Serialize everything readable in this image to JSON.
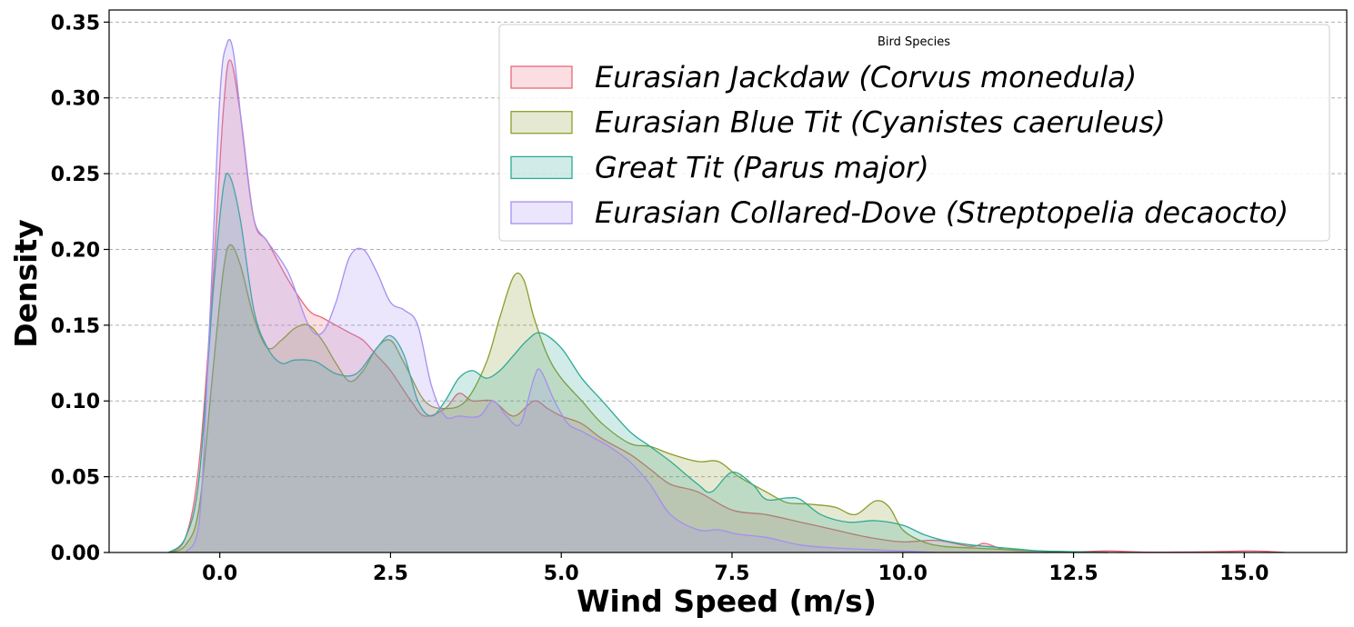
{
  "chart_data": {
    "type": "area",
    "title": "",
    "xlabel": "Wind Speed (m/s)",
    "ylabel": "Density",
    "xlim": [
      -1.62,
      16.5
    ],
    "ylim": [
      0,
      0.358
    ],
    "xticks": [
      0.0,
      2.5,
      5.0,
      7.5,
      10.0,
      12.5,
      15.0
    ],
    "xtick_labels": [
      "0.0",
      "2.5",
      "5.0",
      "7.5",
      "10.0",
      "12.5",
      "15.0"
    ],
    "yticks": [
      0.0,
      0.05,
      0.1,
      0.15,
      0.2,
      0.25,
      0.3,
      0.35
    ],
    "ytick_labels": [
      "0.00",
      "0.05",
      "0.10",
      "0.15",
      "0.20",
      "0.25",
      "0.30",
      "0.35"
    ],
    "grid": "horizontal dashed",
    "legend": {
      "title": "Bird Species",
      "placement": "top-right"
    },
    "series": [
      {
        "name": "Eurasian Jackdaw (Corvus monedula)",
        "color": "#e8687a",
        "fill": "#e8687a",
        "x": [
          -0.75,
          -0.5,
          -0.3,
          -0.1,
          0.05,
          0.15,
          0.3,
          0.5,
          0.7,
          1.0,
          1.3,
          1.5,
          1.7,
          1.9,
          2.1,
          2.3,
          2.5,
          2.8,
          3.0,
          3.3,
          3.5,
          3.7,
          4.0,
          4.3,
          4.6,
          4.8,
          5.0,
          5.3,
          5.6,
          6.0,
          6.3,
          6.6,
          7.0,
          7.5,
          8.0,
          8.5,
          9.0,
          9.5,
          10.0,
          10.5,
          11.0,
          11.2,
          11.5,
          12.0,
          12.5,
          13.0,
          13.5,
          14.0,
          14.5,
          15.0,
          15.3,
          15.6
        ],
        "y": [
          0.0,
          0.01,
          0.06,
          0.18,
          0.29,
          0.325,
          0.29,
          0.22,
          0.205,
          0.18,
          0.16,
          0.155,
          0.15,
          0.145,
          0.14,
          0.13,
          0.12,
          0.1,
          0.09,
          0.095,
          0.105,
          0.1,
          0.1,
          0.09,
          0.1,
          0.095,
          0.09,
          0.085,
          0.075,
          0.065,
          0.055,
          0.045,
          0.04,
          0.028,
          0.025,
          0.02,
          0.015,
          0.01,
          0.007,
          0.008,
          0.004,
          0.006,
          0.002,
          0.001,
          0.0005,
          0.001,
          0.0003,
          0.0003,
          0.0005,
          0.001,
          0.0008,
          0.0
        ]
      },
      {
        "name": "Eurasian Blue Tit (Cyanistes caeruleus)",
        "color": "#8c9d2e",
        "fill": "#8c9d2e",
        "x": [
          -0.75,
          -0.5,
          -0.3,
          -0.1,
          0.05,
          0.15,
          0.3,
          0.5,
          0.7,
          0.9,
          1.1,
          1.3,
          1.5,
          1.7,
          1.9,
          2.1,
          2.3,
          2.5,
          2.7,
          3.0,
          3.3,
          3.6,
          3.9,
          4.1,
          4.3,
          4.45,
          4.6,
          4.8,
          5.0,
          5.3,
          5.6,
          6.0,
          6.3,
          6.6,
          7.0,
          7.3,
          7.6,
          8.0,
          8.3,
          8.6,
          9.0,
          9.3,
          9.6,
          9.8,
          10.0,
          10.3,
          10.6,
          11.0,
          11.5,
          12.0,
          12.5,
          13.0
        ],
        "y": [
          0.0,
          0.005,
          0.03,
          0.12,
          0.185,
          0.203,
          0.19,
          0.155,
          0.135,
          0.14,
          0.148,
          0.15,
          0.14,
          0.125,
          0.113,
          0.12,
          0.135,
          0.14,
          0.125,
          0.1,
          0.095,
          0.1,
          0.125,
          0.155,
          0.182,
          0.18,
          0.155,
          0.13,
          0.115,
          0.1,
          0.085,
          0.072,
          0.07,
          0.065,
          0.06,
          0.06,
          0.05,
          0.04,
          0.033,
          0.032,
          0.03,
          0.025,
          0.034,
          0.03,
          0.015,
          0.007,
          0.004,
          0.003,
          0.002,
          0.001,
          0.0005,
          0.0
        ]
      },
      {
        "name": "Great Tit (Parus major)",
        "color": "#2eaa95",
        "fill": "#2eaa95",
        "x": [
          -0.75,
          -0.5,
          -0.3,
          -0.1,
          0.05,
          0.15,
          0.3,
          0.5,
          0.7,
          0.9,
          1.1,
          1.4,
          1.7,
          2.0,
          2.3,
          2.5,
          2.7,
          2.9,
          3.1,
          3.3,
          3.5,
          3.7,
          3.9,
          4.1,
          4.3,
          4.5,
          4.7,
          5.0,
          5.3,
          5.6,
          6.0,
          6.3,
          6.6,
          7.0,
          7.2,
          7.5,
          7.8,
          8.0,
          8.3,
          8.5,
          8.8,
          9.2,
          9.6,
          10.0,
          10.3,
          10.6,
          11.0,
          11.5,
          12.0,
          12.5,
          13.0
        ],
        "y": [
          0.0,
          0.01,
          0.05,
          0.17,
          0.24,
          0.248,
          0.22,
          0.16,
          0.135,
          0.125,
          0.127,
          0.126,
          0.118,
          0.118,
          0.135,
          0.143,
          0.13,
          0.1,
          0.09,
          0.1,
          0.115,
          0.12,
          0.115,
          0.12,
          0.13,
          0.14,
          0.145,
          0.135,
          0.115,
          0.1,
          0.08,
          0.07,
          0.06,
          0.045,
          0.04,
          0.053,
          0.045,
          0.035,
          0.036,
          0.035,
          0.025,
          0.02,
          0.021,
          0.018,
          0.012,
          0.008,
          0.005,
          0.003,
          0.001,
          0.0005,
          0.0
        ]
      },
      {
        "name": "Eurasian Collared-Dove (Streptopelia decaocto)",
        "color": "#a58ff0",
        "fill": "#a58ff0",
        "x": [
          -0.5,
          -0.3,
          -0.15,
          0.0,
          0.1,
          0.2,
          0.35,
          0.5,
          0.7,
          1.0,
          1.3,
          1.5,
          1.7,
          1.9,
          2.1,
          2.3,
          2.5,
          2.7,
          2.9,
          3.1,
          3.3,
          3.5,
          3.8,
          4.0,
          4.2,
          4.4,
          4.6,
          4.7,
          4.9,
          5.1,
          5.3,
          5.5,
          5.7,
          6.0,
          6.3,
          6.6,
          7.0,
          7.3,
          7.6,
          8.0,
          8.5,
          9.0,
          9.5,
          10.0,
          10.5
        ],
        "y": [
          0.0,
          0.02,
          0.15,
          0.3,
          0.335,
          0.33,
          0.27,
          0.22,
          0.205,
          0.185,
          0.15,
          0.145,
          0.165,
          0.195,
          0.2,
          0.185,
          0.165,
          0.16,
          0.15,
          0.11,
          0.09,
          0.09,
          0.09,
          0.1,
          0.09,
          0.085,
          0.115,
          0.12,
          0.1,
          0.085,
          0.08,
          0.075,
          0.07,
          0.06,
          0.045,
          0.025,
          0.015,
          0.015,
          0.012,
          0.01,
          0.005,
          0.003,
          0.002,
          0.001,
          0.0
        ]
      }
    ]
  }
}
